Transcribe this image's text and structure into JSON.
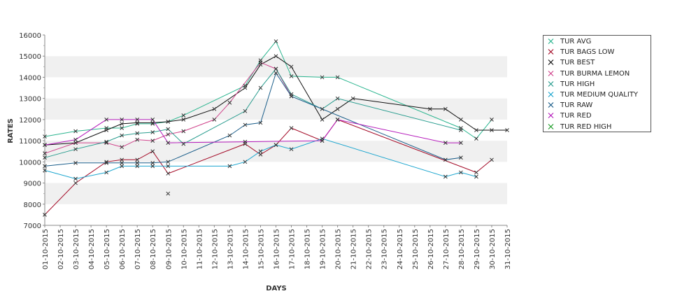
{
  "chart_data": {
    "type": "line",
    "xlabel": "DAYS",
    "ylabel": "RATES",
    "ylim": [
      7000,
      16000
    ],
    "yticks": [
      7000,
      8000,
      9000,
      10000,
      11000,
      12000,
      13000,
      14000,
      15000,
      16000
    ],
    "grid": "alternating horizontal bands",
    "legend_position": "right",
    "categories": [
      "01-10-2015",
      "02-10-2015",
      "03-10-2015",
      "04-10-2015",
      "05-10-2015",
      "06-10-2015",
      "07-10-2015",
      "08-10-2015",
      "09-10-2015",
      "10-10-2015",
      "11-10-2015",
      "12-10-2015",
      "13-10-2015",
      "14-10-2015",
      "15-10-2015",
      "16-10-2015",
      "17-10-2015",
      "18-10-2015",
      "19-10-2015",
      "20-10-2015",
      "21-10-2015",
      "22-10-2015",
      "23-10-2015",
      "24-10-2015",
      "25-10-2015",
      "26-10-2015",
      "27-10-2015",
      "28-10-2015",
      "29-10-2015",
      "30-10-2015",
      "31-10-2015"
    ],
    "series": [
      {
        "name": "TUR AVG",
        "color": "#2bb58f",
        "points": [
          [
            "01-10-2015",
            11200
          ],
          [
            "03-10-2015",
            11450
          ],
          [
            "05-10-2015",
            11600
          ],
          [
            "06-10-2015",
            11600
          ],
          [
            "07-10-2015",
            11800
          ],
          [
            "08-10-2015",
            11800
          ],
          [
            "09-10-2015",
            11900
          ],
          [
            "10-10-2015",
            12200
          ],
          [
            "14-10-2015",
            13600
          ],
          [
            "15-10-2015",
            14800
          ],
          [
            "16-10-2015",
            15700
          ],
          [
            "17-10-2015",
            14050
          ],
          [
            "19-10-2015",
            14000
          ],
          [
            "20-10-2015",
            14000
          ],
          [
            "28-10-2015",
            11600
          ],
          [
            "29-10-2015",
            11100
          ],
          [
            "30-10-2015",
            12000
          ]
        ]
      },
      {
        "name": "TUR BAGS LOW",
        "color": "#a50e2a",
        "points": [
          [
            "01-10-2015",
            7500
          ],
          [
            "03-10-2015",
            9000
          ],
          [
            "05-10-2015",
            10000
          ],
          [
            "06-10-2015",
            10100
          ],
          [
            "07-10-2015",
            10100
          ],
          [
            "08-10-2015",
            10500
          ],
          [
            "09-10-2015",
            9450
          ],
          [
            "14-10-2015",
            10850
          ],
          [
            "15-10-2015",
            10350
          ],
          [
            "16-10-2015",
            10800
          ],
          [
            "17-10-2015",
            11600
          ],
          [
            "19-10-2015",
            11000
          ],
          [
            "20-10-2015",
            12000
          ],
          [
            "29-10-2015",
            9500
          ],
          [
            "30-10-2015",
            10100
          ]
        ]
      },
      {
        "name": "TUR BEST",
        "color": "#111111",
        "points": [
          [
            "01-10-2015",
            10800
          ],
          [
            "03-10-2015",
            10900
          ],
          [
            "05-10-2015",
            11500
          ],
          [
            "06-10-2015",
            11800
          ],
          [
            "07-10-2015",
            11850
          ],
          [
            "08-10-2015",
            11850
          ],
          [
            "09-10-2015",
            11900
          ],
          [
            "10-10-2015",
            12000
          ],
          [
            "12-10-2015",
            12500
          ],
          [
            "14-10-2015",
            13500
          ],
          [
            "15-10-2015",
            14600
          ],
          [
            "16-10-2015",
            15000
          ],
          [
            "17-10-2015",
            14500
          ],
          [
            "19-10-2015",
            12000
          ],
          [
            "20-10-2015",
            12500
          ],
          [
            "21-10-2015",
            13000
          ],
          [
            "26-10-2015",
            12500
          ],
          [
            "27-10-2015",
            12500
          ],
          [
            "28-10-2015",
            12000
          ],
          [
            "29-10-2015",
            11500
          ],
          [
            "30-10-2015",
            11500
          ],
          [
            "31-10-2015",
            11500
          ]
        ]
      },
      {
        "name": "TUR BURMA LEMON",
        "color": "#d0458c",
        "points": [
          [
            "01-10-2015",
            10400
          ],
          [
            "03-10-2015",
            10900
          ],
          [
            "05-10-2015",
            10900
          ],
          [
            "06-10-2015",
            10700
          ],
          [
            "07-10-2015",
            11050
          ],
          [
            "08-10-2015",
            11000
          ],
          [
            "09-10-2015",
            11300
          ],
          [
            "10-10-2015",
            11450
          ],
          [
            "12-10-2015",
            12000
          ],
          [
            "13-10-2015",
            12800
          ],
          [
            "15-10-2015",
            14700
          ],
          [
            "16-10-2015",
            14400
          ],
          [
            "17-10-2015",
            13100
          ]
        ]
      },
      {
        "name": "TUR HIGH",
        "color": "#2a9d8f",
        "points": [
          [
            "01-10-2015",
            10200
          ],
          [
            "03-10-2015",
            10600
          ],
          [
            "05-10-2015",
            10950
          ],
          [
            "06-10-2015",
            11250
          ],
          [
            "07-10-2015",
            11350
          ],
          [
            "08-10-2015",
            11400
          ],
          [
            "09-10-2015",
            11550
          ],
          [
            "10-10-2015",
            10850
          ],
          [
            "14-10-2015",
            12400
          ],
          [
            "15-10-2015",
            13500
          ],
          [
            "16-10-2015",
            14400
          ],
          [
            "17-10-2015",
            13200
          ],
          [
            "19-10-2015",
            12500
          ],
          [
            "20-10-2015",
            13000
          ],
          [
            "28-10-2015",
            11500
          ]
        ]
      },
      {
        "name": "TUR MEDIUM QUALITY",
        "color": "#1da6cf",
        "points": [
          [
            "01-10-2015",
            9600
          ],
          [
            "03-10-2015",
            9200
          ],
          [
            "05-10-2015",
            9500
          ],
          [
            "06-10-2015",
            9800
          ],
          [
            "07-10-2015",
            9800
          ],
          [
            "08-10-2015",
            9800
          ],
          [
            "09-10-2015",
            9800
          ],
          [
            "13-10-2015",
            9800
          ],
          [
            "14-10-2015",
            10000
          ],
          [
            "15-10-2015",
            10500
          ],
          [
            "16-10-2015",
            10800
          ],
          [
            "17-10-2015",
            10600
          ],
          [
            "19-10-2015",
            11100
          ],
          [
            "27-10-2015",
            9300
          ],
          [
            "28-10-2015",
            9500
          ],
          [
            "29-10-2015",
            9300
          ]
        ]
      },
      {
        "name": "TUR RAW",
        "color": "#1b5e8a",
        "points": [
          [
            "01-10-2015",
            9800
          ],
          [
            "03-10-2015",
            9950
          ],
          [
            "05-10-2015",
            9950
          ],
          [
            "06-10-2015",
            9950
          ],
          [
            "07-10-2015",
            9950
          ],
          [
            "08-10-2015",
            9950
          ],
          [
            "09-10-2015",
            10000
          ],
          [
            "13-10-2015",
            11250
          ],
          [
            "14-10-2015",
            11750
          ],
          [
            "15-10-2015",
            11850
          ],
          [
            "16-10-2015",
            14200
          ],
          [
            "17-10-2015",
            13100
          ],
          [
            "27-10-2015",
            10100
          ],
          [
            "28-10-2015",
            10200
          ]
        ]
      },
      {
        "name": "TUR RED",
        "color": "#b51bbb",
        "points": [
          [
            "01-10-2015",
            10800
          ],
          [
            "03-10-2015",
            11050
          ],
          [
            "05-10-2015",
            12000
          ],
          [
            "06-10-2015",
            12000
          ],
          [
            "07-10-2015",
            12000
          ],
          [
            "08-10-2015",
            12000
          ],
          [
            "09-10-2015",
            10900
          ],
          [
            "14-10-2015",
            10950
          ],
          [
            "19-10-2015",
            11000
          ],
          [
            "20-10-2015",
            12000
          ],
          [
            "27-10-2015",
            10900
          ],
          [
            "28-10-2015",
            10900
          ]
        ]
      },
      {
        "name": "TUR RED HIGH",
        "color": "#1f9d28",
        "points": [
          [
            "09-10-2015",
            8500
          ]
        ]
      }
    ]
  }
}
